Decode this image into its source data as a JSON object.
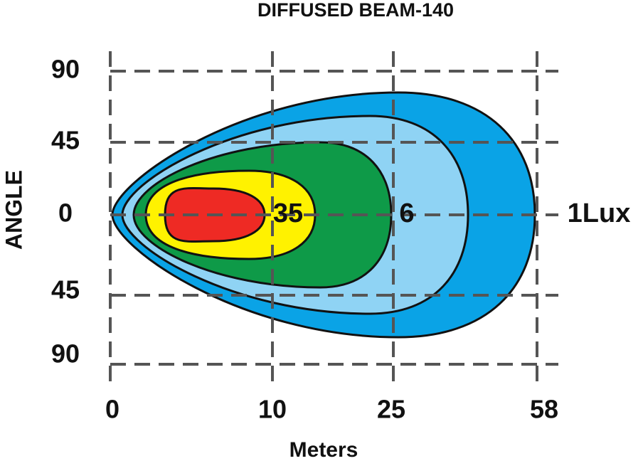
{
  "title": "DIFFUSED  BEAM-140",
  "x_axis": {
    "label": "Meters",
    "ticks": [
      "0",
      "10",
      "25",
      "58"
    ]
  },
  "y_axis": {
    "label": "ANGLE",
    "ticks": [
      "90",
      "45",
      "0",
      "45",
      "90"
    ]
  },
  "contour_labels": [
    "35",
    "6",
    "1Lux"
  ]
}
